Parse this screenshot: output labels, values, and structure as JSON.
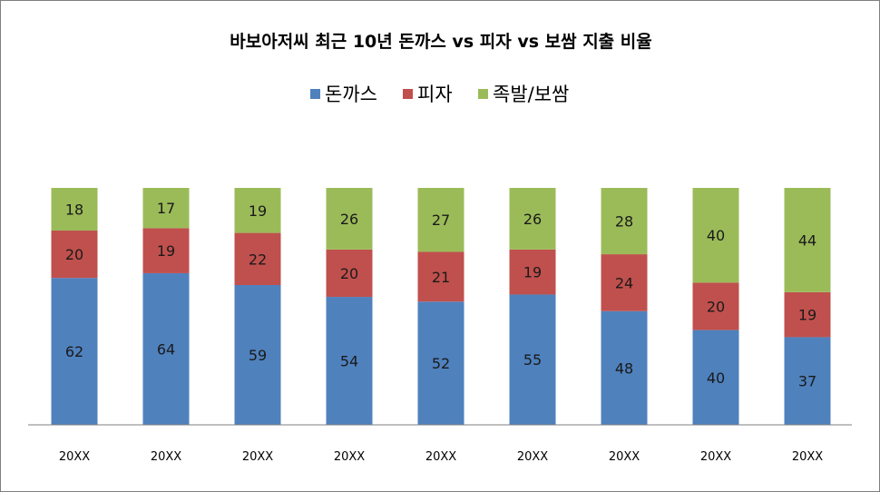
{
  "chart_data": {
    "type": "bar",
    "stacked": true,
    "title": "바보아저씨 최근 10년 돈까스 vs 피자 vs 보쌈 지출 비율",
    "xlabel": "",
    "ylabel": "",
    "ylim": [
      0,
      100
    ],
    "grid": false,
    "legend_position": "top",
    "categories": [
      "20XX",
      "20XX",
      "20XX",
      "20XX",
      "20XX",
      "20XX",
      "20XX",
      "20XX",
      "20XX"
    ],
    "series": [
      {
        "name": "돈까스",
        "color": "#4F81BD",
        "values": [
          62,
          64,
          59,
          54,
          52,
          55,
          48,
          40,
          37
        ]
      },
      {
        "name": "피자",
        "color": "#C0504D",
        "values": [
          20,
          19,
          22,
          20,
          21,
          19,
          24,
          20,
          19
        ]
      },
      {
        "name": "족발/보쌈",
        "color": "#9BBB59",
        "values": [
          18,
          17,
          19,
          26,
          27,
          26,
          28,
          40,
          44
        ]
      }
    ]
  }
}
